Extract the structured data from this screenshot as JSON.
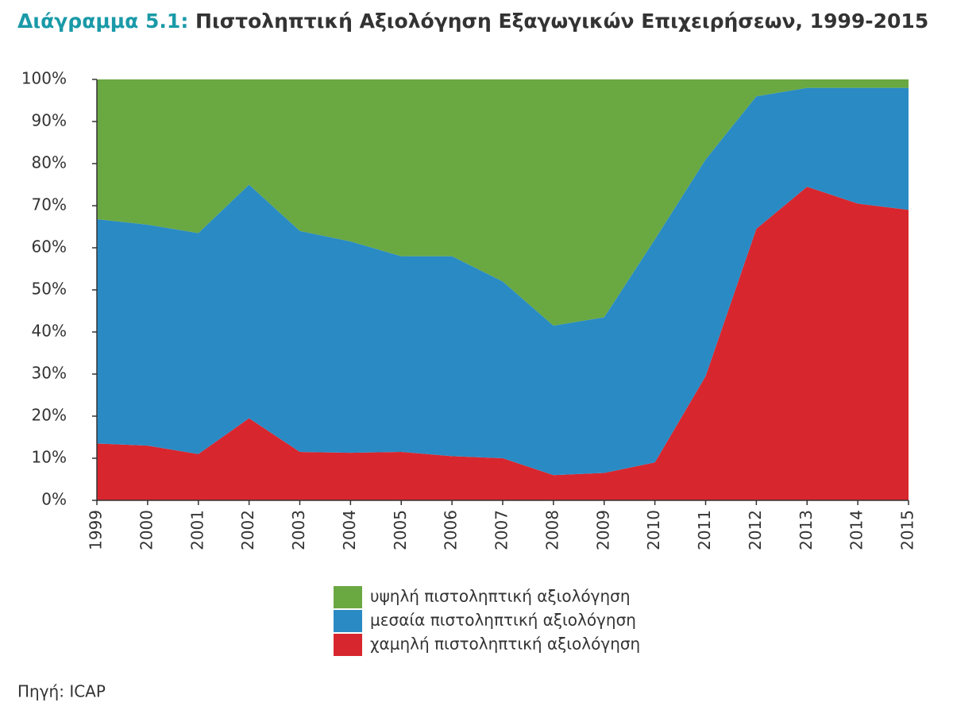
{
  "chart_data": {
    "type": "stacked_area",
    "title_prefix": "Διάγραμμα 5.1:",
    "title": "Πιστοληπτική Αξιολόγηση Εξαγωγικών Επιχειρήσεων, 1999-2015",
    "source": "Πηγή: ICAP",
    "categories": [
      "1999",
      "2000",
      "2001",
      "2002",
      "2003",
      "2004",
      "2005",
      "2006",
      "2007",
      "2008",
      "2009",
      "2010",
      "2011",
      "2012",
      "2013",
      "2014",
      "2015"
    ],
    "series": [
      {
        "name": "υψηλή πιστοληπτική αξιολόγηση",
        "color": "#6aa842",
        "values": [
          33.2,
          34.5,
          36.5,
          25,
          36,
          38.5,
          42,
          42,
          48,
          58.5,
          56.5,
          38,
          19,
          4,
          2,
          2,
          2
        ]
      },
      {
        "name": "μεσαία πιστοληπτική αξιολόγηση",
        "color": "#2a8bc4",
        "values": [
          53.3,
          52.5,
          52.5,
          55.5,
          52.5,
          50.2,
          46.5,
          47.5,
          42,
          35.5,
          37,
          53,
          51.5,
          31.5,
          23.5,
          27.5,
          29
        ]
      },
      {
        "name": "χαμηλή πιστοληπτική αξιολόγηση",
        "color": "#d8262e",
        "values": [
          13.5,
          13,
          11,
          19.5,
          11.5,
          11.3,
          11.5,
          10.5,
          10,
          6,
          6.5,
          9,
          29.5,
          64.5,
          74.5,
          70.5,
          69
        ]
      }
    ],
    "stack_from": "last",
    "ylim": [
      0,
      100
    ],
    "yticks": [
      {
        "value": 0,
        "label": "0%"
      },
      {
        "value": 10,
        "label": "10%"
      },
      {
        "value": 20,
        "label": "20%"
      },
      {
        "value": 30,
        "label": "30%"
      },
      {
        "value": 40,
        "label": "40%"
      },
      {
        "value": 50,
        "label": "50%"
      },
      {
        "value": 60,
        "label": "60%"
      },
      {
        "value": 70,
        "label": "70%"
      },
      {
        "value": 80,
        "label": "80%"
      },
      {
        "value": 90,
        "label": "90%"
      },
      {
        "value": 100,
        "label": "100%"
      }
    ],
    "grid": false,
    "title_prefix_color": "#1a9aa8"
  }
}
